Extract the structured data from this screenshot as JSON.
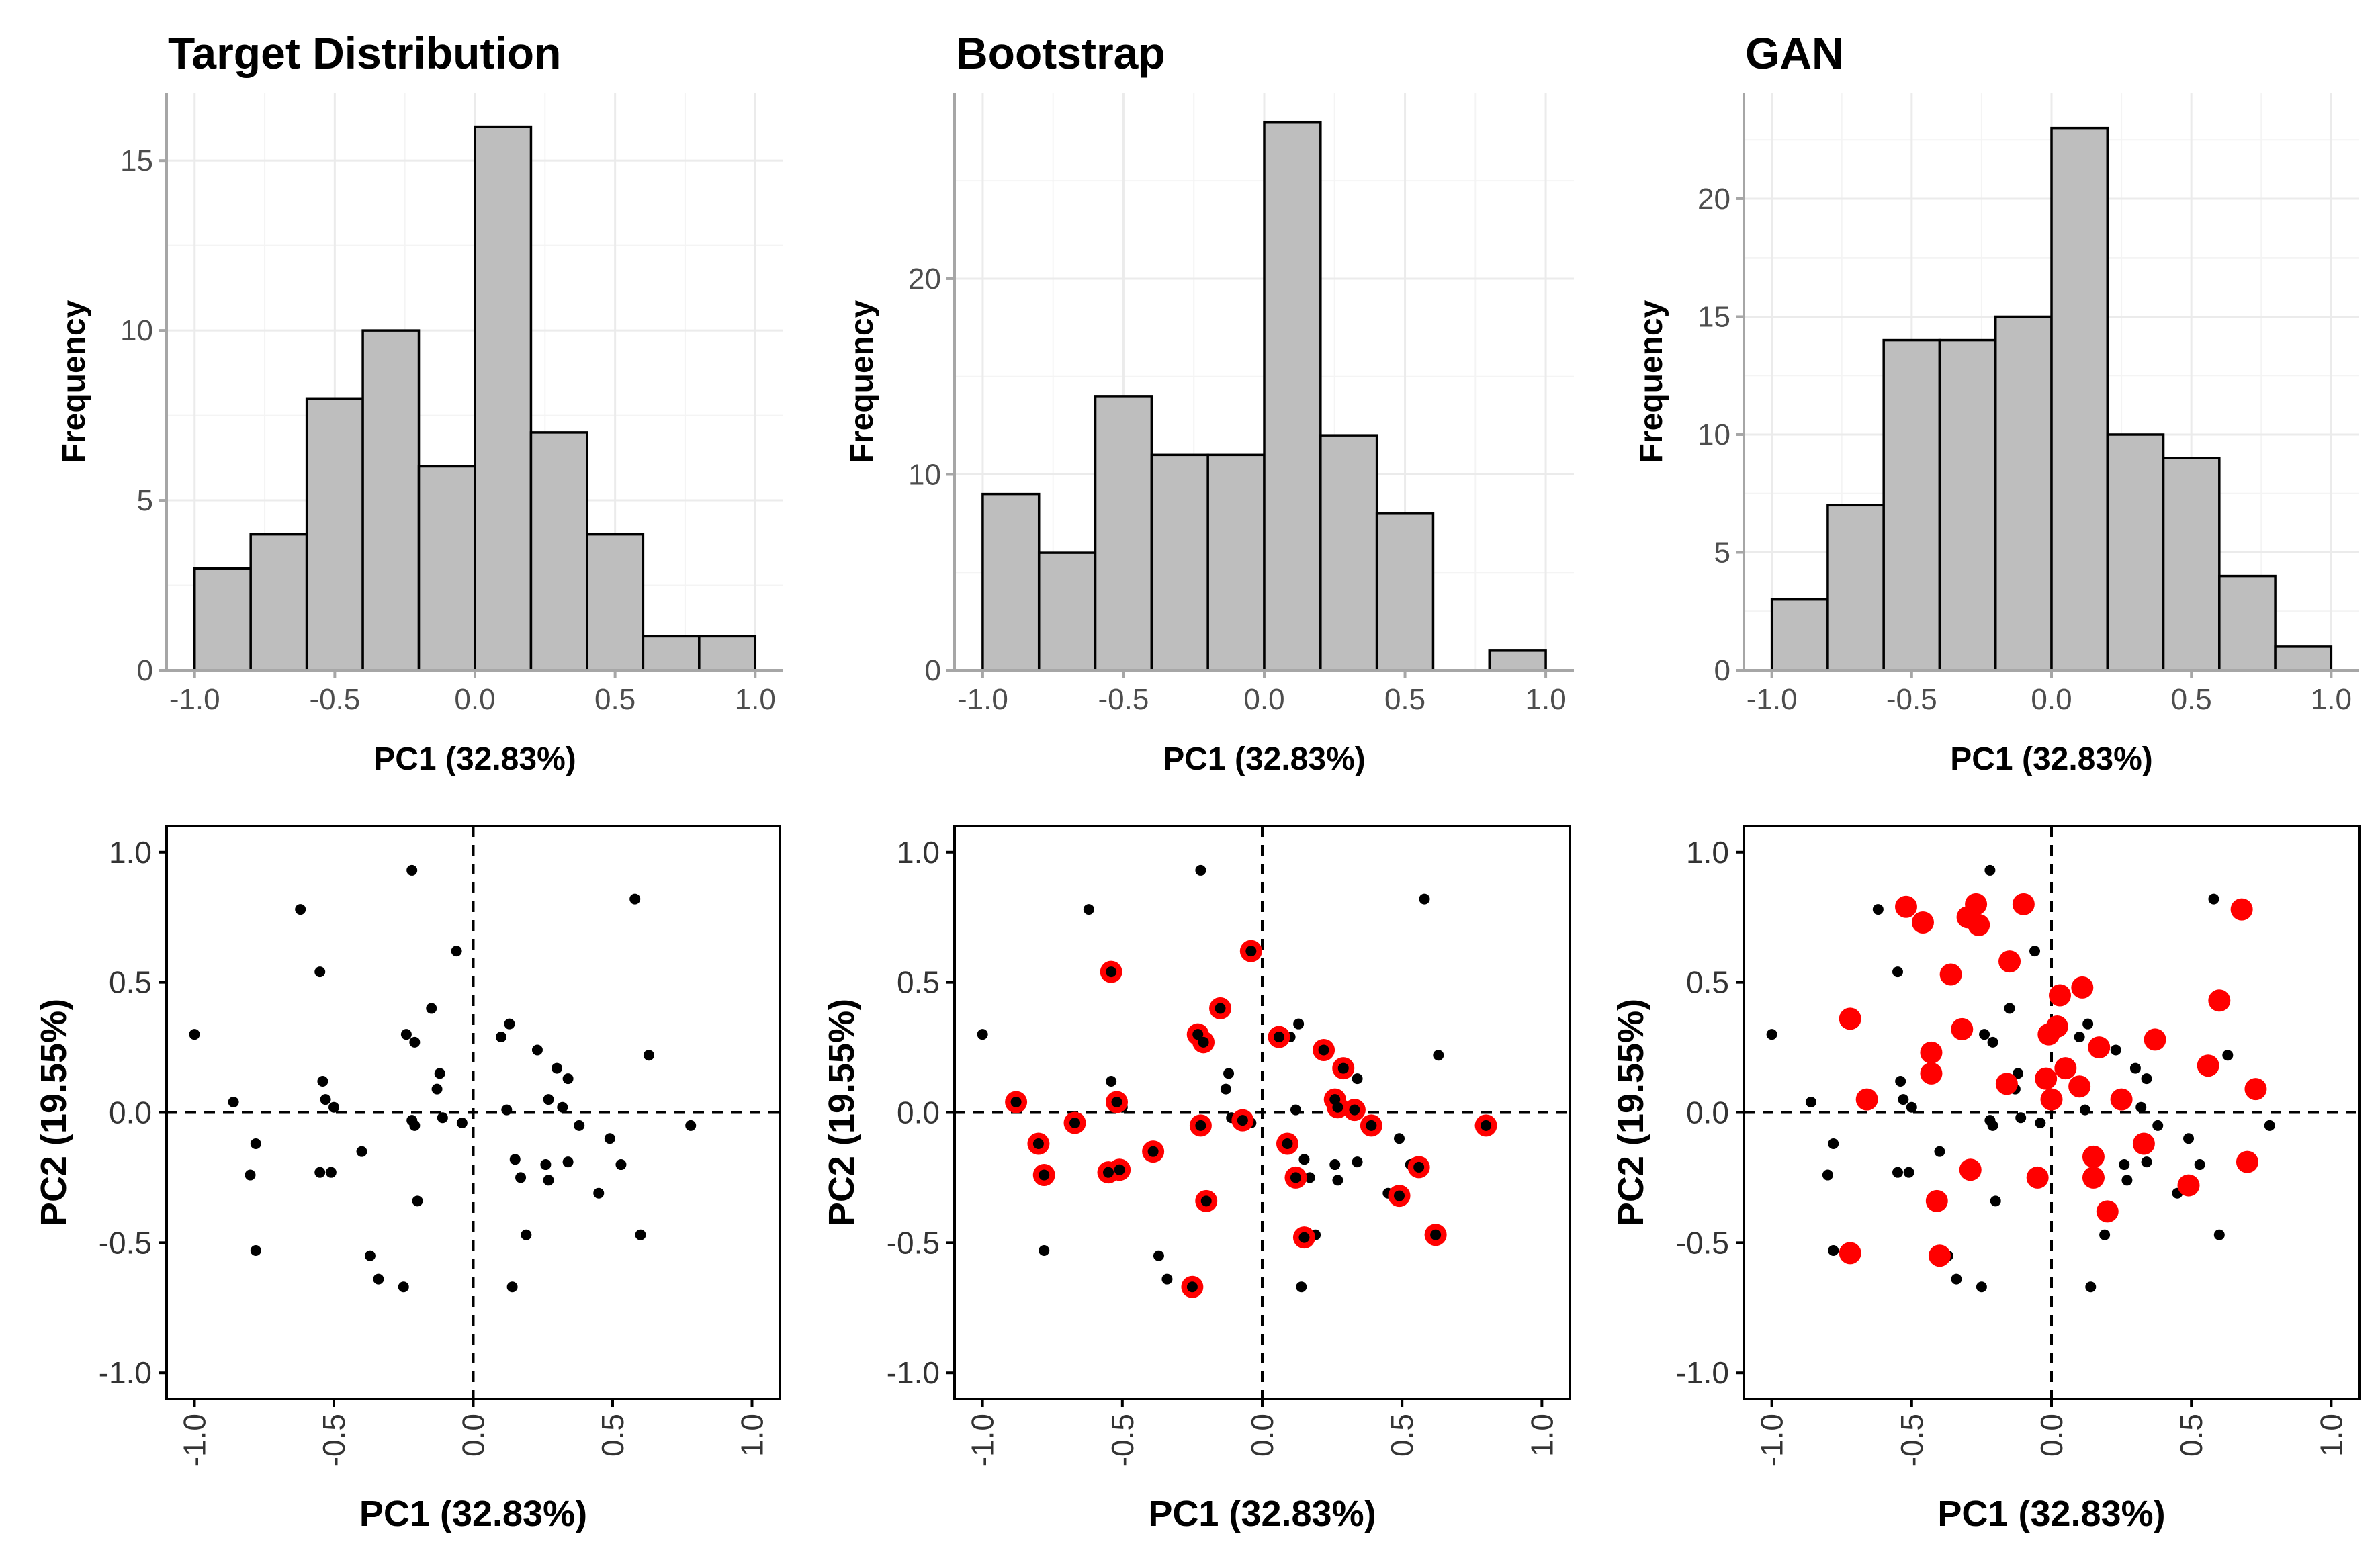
{
  "chart_data": [
    {
      "type": "bar",
      "id": "hist-target",
      "title": "Target Distribution",
      "xlabel": "PC1 (32.83%)",
      "ylabel": "Frequency",
      "bin_edges": [
        -1.0,
        -0.8,
        -0.6,
        -0.4,
        -0.2,
        0.0,
        0.2,
        0.4,
        0.6,
        0.8,
        1.0
      ],
      "values": [
        3,
        4,
        8,
        10,
        6,
        16,
        7,
        4,
        1,
        1
      ],
      "xlim": [
        -1.1,
        1.1
      ],
      "ylim": [
        0,
        17
      ],
      "xticks": [
        "-1.0",
        "-0.5",
        "0.0",
        "0.5",
        "1.0"
      ],
      "xtick_values": [
        -1.0,
        -0.5,
        0.0,
        0.5,
        1.0
      ],
      "yticks": [
        "0",
        "5",
        "10",
        "15"
      ],
      "ytick_values": [
        0,
        5,
        10,
        15
      ],
      "grid": true
    },
    {
      "type": "bar",
      "id": "hist-bootstrap",
      "title": "Bootstrap",
      "xlabel": "PC1 (32.83%)",
      "ylabel": "Frequency",
      "bin_edges": [
        -1.0,
        -0.8,
        -0.6,
        -0.4,
        -0.2,
        0.0,
        0.2,
        0.4,
        0.6,
        0.8,
        1.0
      ],
      "values": [
        9,
        6,
        14,
        11,
        11,
        28,
        12,
        8,
        0,
        1
      ],
      "xlim": [
        -1.1,
        1.1
      ],
      "ylim": [
        0,
        29.5
      ],
      "xticks": [
        "-1.0",
        "-0.5",
        "0.0",
        "0.5",
        "1.0"
      ],
      "xtick_values": [
        -1.0,
        -0.5,
        0.0,
        0.5,
        1.0
      ],
      "yticks": [
        "0",
        "10",
        "20"
      ],
      "ytick_values": [
        0,
        10,
        20
      ],
      "grid": true
    },
    {
      "type": "bar",
      "id": "hist-gan",
      "title": "GAN",
      "xlabel": "PC1 (32.83%)",
      "ylabel": "Frequency",
      "bin_edges": [
        -1.0,
        -0.8,
        -0.6,
        -0.4,
        -0.2,
        0.0,
        0.2,
        0.4,
        0.6,
        0.8,
        1.0
      ],
      "values": [
        3,
        7,
        14,
        14,
        15,
        23,
        10,
        9,
        4,
        1
      ],
      "xlim": [
        -1.1,
        1.1
      ],
      "ylim": [
        0,
        24.5
      ],
      "xticks": [
        "-1.0",
        "-0.5",
        "0.0",
        "0.5",
        "1.0"
      ],
      "xtick_values": [
        -1.0,
        -0.5,
        0.0,
        0.5,
        1.0
      ],
      "yticks": [
        "0",
        "5",
        "10",
        "15",
        "20"
      ],
      "ytick_values": [
        0,
        5,
        10,
        15,
        20
      ],
      "grid": true
    },
    {
      "type": "scatter",
      "id": "scatter-target",
      "xlabel": "PC1 (32.83%)",
      "ylabel": "PC2 (19.55%)",
      "xlim": [
        -1.1,
        1.1
      ],
      "ylim": [
        -1.1,
        1.1
      ],
      "xticks": [
        "-1.0",
        "-0.5",
        "0.0",
        "0.5",
        "1.0"
      ],
      "xtick_values": [
        -1.0,
        -0.5,
        0.0,
        0.5,
        1.0
      ],
      "yticks": [
        "-1.0",
        "-0.5",
        "0.0",
        "0.5",
        "1.0"
      ],
      "ytick_values": [
        -1.0,
        -0.5,
        0.0,
        0.5,
        1.0
      ],
      "reference_lines": {
        "x": 0,
        "y": 0,
        "style": "dashed"
      },
      "series": [
        {
          "name": "target",
          "color": "#000000",
          "x": [
            -1.0,
            -0.86,
            -0.8,
            -0.78,
            -0.78,
            -0.62,
            -0.55,
            -0.54,
            -0.55,
            -0.53,
            -0.51,
            -0.5,
            -0.4,
            -0.37,
            -0.34,
            -0.25,
            -0.24,
            -0.22,
            -0.22,
            -0.21,
            -0.21,
            -0.2,
            -0.15,
            -0.13,
            -0.12,
            -0.11,
            -0.06,
            -0.04,
            0.1,
            0.12,
            0.13,
            0.14,
            0.15,
            0.17,
            0.19,
            0.23,
            0.26,
            0.27,
            0.27,
            0.3,
            0.32,
            0.34,
            0.34,
            0.38,
            0.45,
            0.49,
            0.53,
            0.58,
            0.6,
            0.63,
            0.78
          ],
          "y": [
            0.3,
            0.04,
            -0.24,
            -0.12,
            -0.53,
            0.78,
            0.54,
            0.12,
            -0.23,
            0.05,
            -0.23,
            0.02,
            -0.15,
            -0.55,
            -0.64,
            -0.67,
            0.3,
            0.93,
            -0.03,
            -0.05,
            0.27,
            -0.34,
            0.4,
            0.09,
            0.15,
            -0.02,
            0.62,
            -0.04,
            0.29,
            0.01,
            0.34,
            -0.67,
            -0.18,
            -0.25,
            -0.47,
            0.24,
            -0.2,
            -0.26,
            0.05,
            0.17,
            0.02,
            -0.19,
            0.13,
            -0.05,
            -0.31,
            -0.1,
            -0.2,
            0.82,
            -0.47,
            0.22,
            -0.05
          ]
        }
      ]
    },
    {
      "type": "scatter",
      "id": "scatter-bootstrap",
      "xlabel": "PC1 (32.83%)",
      "ylabel": "PC2 (19.55%)",
      "xlim": [
        -1.1,
        1.1
      ],
      "ylim": [
        -1.1,
        1.1
      ],
      "xticks": [
        "-1.0",
        "-0.5",
        "0.0",
        "0.5",
        "1.0"
      ],
      "xtick_values": [
        -1.0,
        -0.5,
        0.0,
        0.5,
        1.0
      ],
      "yticks": [
        "-1.0",
        "-0.5",
        "0.0",
        "0.5",
        "1.0"
      ],
      "ytick_values": [
        -1.0,
        -0.5,
        0.0,
        0.5,
        1.0
      ],
      "reference_lines": {
        "x": 0,
        "y": 0,
        "style": "dashed"
      },
      "series": [
        {
          "name": "target",
          "color": "#000000",
          "x": [
            -1.0,
            -0.86,
            -0.8,
            -0.78,
            -0.78,
            -0.62,
            -0.55,
            -0.54,
            -0.55,
            -0.53,
            -0.51,
            -0.5,
            -0.4,
            -0.37,
            -0.34,
            -0.25,
            -0.24,
            -0.22,
            -0.22,
            -0.21,
            -0.21,
            -0.2,
            -0.15,
            -0.13,
            -0.12,
            -0.11,
            -0.06,
            -0.04,
            0.1,
            0.12,
            0.13,
            0.14,
            0.15,
            0.17,
            0.19,
            0.23,
            0.26,
            0.27,
            0.27,
            0.3,
            0.32,
            0.34,
            0.34,
            0.38,
            0.45,
            0.49,
            0.53,
            0.58,
            0.6,
            0.63,
            0.78
          ],
          "y": [
            0.3,
            0.04,
            -0.24,
            -0.12,
            -0.53,
            0.78,
            0.54,
            0.12,
            -0.23,
            0.05,
            -0.23,
            0.02,
            -0.15,
            -0.55,
            -0.64,
            -0.67,
            0.3,
            0.93,
            -0.03,
            -0.05,
            0.27,
            -0.34,
            0.4,
            0.09,
            0.15,
            -0.02,
            0.62,
            -0.04,
            0.29,
            0.01,
            0.34,
            -0.67,
            -0.18,
            -0.25,
            -0.47,
            0.24,
            -0.2,
            -0.26,
            0.05,
            0.17,
            0.02,
            -0.19,
            0.13,
            -0.05,
            -0.31,
            -0.1,
            -0.2,
            0.82,
            -0.47,
            0.22,
            -0.05
          ]
        },
        {
          "name": "bootstrap",
          "color": "#ff0000",
          "x": [
            -0.88,
            -0.8,
            -0.78,
            -0.67,
            -0.55,
            -0.54,
            -0.52,
            -0.51,
            -0.39,
            -0.25,
            -0.23,
            -0.22,
            -0.21,
            -0.2,
            -0.15,
            -0.07,
            -0.04,
            0.06,
            0.09,
            0.12,
            0.15,
            0.22,
            0.26,
            0.27,
            0.29,
            0.33,
            0.39,
            0.49,
            0.56,
            0.62,
            0.8
          ],
          "y": [
            0.04,
            -0.12,
            -0.24,
            -0.04,
            -0.23,
            0.54,
            0.04,
            -0.22,
            -0.15,
            -0.67,
            0.3,
            -0.05,
            0.27,
            -0.34,
            0.4,
            -0.03,
            0.62,
            0.29,
            -0.12,
            -0.25,
            -0.48,
            0.24,
            0.05,
            0.02,
            0.17,
            0.01,
            -0.05,
            -0.32,
            -0.21,
            -0.47,
            -0.05
          ]
        }
      ]
    },
    {
      "type": "scatter",
      "id": "scatter-gan",
      "xlabel": "PC1 (32.83%)",
      "ylabel": "PC2 (19.55%)",
      "xlim": [
        -1.1,
        1.1
      ],
      "ylim": [
        -1.1,
        1.1
      ],
      "xticks": [
        "-1.0",
        "-0.5",
        "0.0",
        "0.5",
        "1.0"
      ],
      "xtick_values": [
        -1.0,
        -0.5,
        0.0,
        0.5,
        1.0
      ],
      "yticks": [
        "-1.0",
        "-0.5",
        "0.0",
        "0.5",
        "1.0"
      ],
      "ytick_values": [
        -1.0,
        -0.5,
        0.0,
        0.5,
        1.0
      ],
      "reference_lines": {
        "x": 0,
        "y": 0,
        "style": "dashed"
      },
      "series": [
        {
          "name": "target",
          "color": "#000000",
          "x": [
            -1.0,
            -0.86,
            -0.8,
            -0.78,
            -0.78,
            -0.62,
            -0.55,
            -0.54,
            -0.55,
            -0.53,
            -0.51,
            -0.5,
            -0.4,
            -0.37,
            -0.34,
            -0.25,
            -0.24,
            -0.22,
            -0.22,
            -0.21,
            -0.21,
            -0.2,
            -0.15,
            -0.13,
            -0.12,
            -0.11,
            -0.06,
            -0.04,
            0.1,
            0.12,
            0.13,
            0.14,
            0.15,
            0.17,
            0.19,
            0.23,
            0.26,
            0.27,
            0.27,
            0.3,
            0.32,
            0.34,
            0.34,
            0.38,
            0.45,
            0.49,
            0.53,
            0.58,
            0.6,
            0.63,
            0.78
          ],
          "y": [
            0.3,
            0.04,
            -0.24,
            -0.12,
            -0.53,
            0.78,
            0.54,
            0.12,
            -0.23,
            0.05,
            -0.23,
            0.02,
            -0.15,
            -0.55,
            -0.64,
            -0.67,
            0.3,
            0.93,
            -0.03,
            -0.05,
            0.27,
            -0.34,
            0.4,
            0.09,
            0.15,
            -0.02,
            0.62,
            -0.04,
            0.29,
            0.01,
            0.34,
            -0.67,
            -0.18,
            -0.25,
            -0.47,
            0.24,
            -0.2,
            -0.26,
            0.05,
            0.17,
            0.02,
            -0.19,
            0.13,
            -0.05,
            -0.31,
            -0.1,
            -0.2,
            0.82,
            -0.47,
            0.22,
            -0.05
          ]
        },
        {
          "name": "gan",
          "color": "#ff0000",
          "x": [
            -0.72,
            -0.72,
            -0.66,
            -0.52,
            -0.46,
            -0.43,
            -0.43,
            -0.41,
            -0.4,
            -0.36,
            -0.32,
            -0.3,
            -0.29,
            -0.27,
            -0.26,
            -0.16,
            -0.15,
            -0.1,
            -0.05,
            -0.02,
            -0.01,
            0.0,
            0.02,
            0.03,
            0.05,
            0.1,
            0.11,
            0.15,
            0.15,
            0.17,
            0.2,
            0.25,
            0.33,
            0.37,
            0.49,
            0.56,
            0.6,
            0.68,
            0.7,
            0.73
          ],
          "y": [
            0.36,
            -0.54,
            0.05,
            0.79,
            0.73,
            0.23,
            0.15,
            -0.34,
            -0.55,
            0.53,
            0.32,
            0.75,
            -0.22,
            0.8,
            0.72,
            0.11,
            0.58,
            0.8,
            -0.25,
            0.13,
            0.3,
            0.05,
            0.33,
            0.45,
            0.17,
            0.1,
            0.48,
            -0.25,
            -0.17,
            0.25,
            -0.38,
            0.05,
            -0.12,
            0.28,
            -0.28,
            0.18,
            0.43,
            0.78,
            -0.19,
            0.09
          ]
        }
      ]
    }
  ]
}
